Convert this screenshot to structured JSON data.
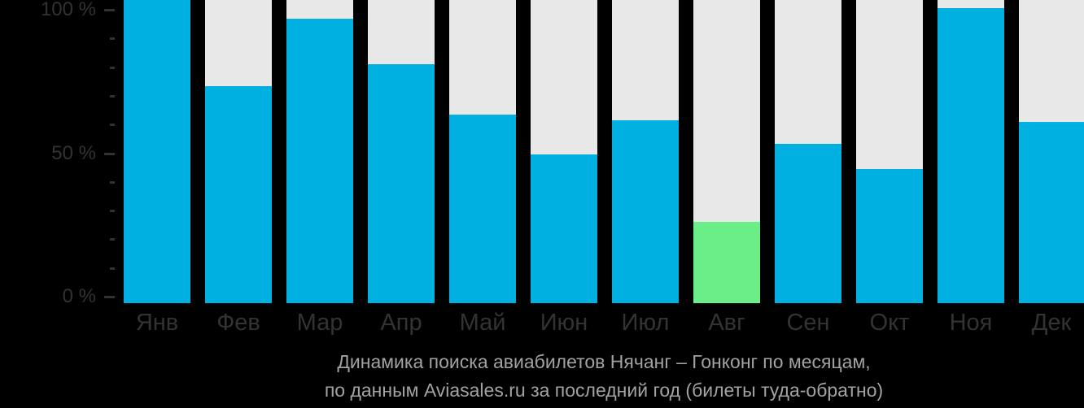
{
  "chart_data": {
    "type": "bar",
    "title": "Динамика поиска авиабилетов Нячанг – Гонконг по месяцам,",
    "subtitle": "по данным Aviasales.ru за последний год (билеты туда-обратно)",
    "categories": [
      "Янв",
      "Фев",
      "Мар",
      "Апр",
      "Май",
      "Июн",
      "Июл",
      "Авг",
      "Сен",
      "Окт",
      "Ноя",
      "Дек"
    ],
    "values": [
      103,
      73.5,
      96.5,
      81,
      64,
      50.5,
      62,
      27.5,
      54,
      45.5,
      100,
      61.5
    ],
    "unit": "%",
    "highlight_index": 7,
    "highlight_month": "Авг",
    "y_axis": {
      "ylim": [
        0,
        100
      ],
      "major_ticks": [
        {
          "value": 100,
          "label": "100 %"
        },
        {
          "value": 50,
          "label": "50 %"
        },
        {
          "value": 0,
          "label": "0 %"
        }
      ],
      "minor_tick_step": 10
    },
    "grid": "off",
    "legend": "none",
    "colors": {
      "bar": "#00b0e0",
      "highlight": "#6bee88",
      "track": "#e8e8e8",
      "axis_text": "#323232",
      "caption_text": "#a2a2a2",
      "background": "#000000"
    }
  }
}
